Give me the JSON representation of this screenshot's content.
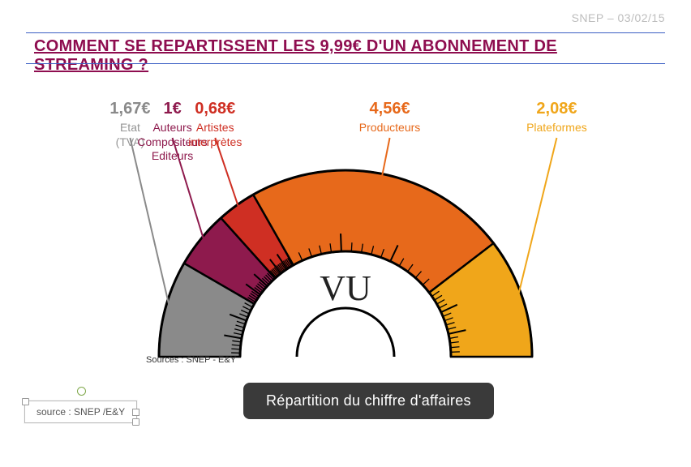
{
  "meta": {
    "org": "SNEP",
    "date": "03/02/15",
    "header_text": "SNEP – 03/02/15"
  },
  "title": "COMMENT SE REPARTISSENT LES 9,99€ D'UN ABONNEMENT DE STREAMING ?",
  "chart": {
    "type": "semi-donut-gauge",
    "units": "€",
    "total": 9.99,
    "center_label": "VU",
    "subtitle": "Répartition du chiffre d'affaires",
    "source_inline": "Sources : SNEP - E&Y",
    "segments": [
      {
        "label_lines": [
          "Etat",
          "(TVA)"
        ],
        "value": 1.67,
        "value_display": "1,67€",
        "color": "#8a8a8a"
      },
      {
        "label_lines": [
          "Auteurs",
          "Compositeurs",
          "Editeurs"
        ],
        "value": 1.0,
        "value_display": "1€",
        "color": "#8e1a4d"
      },
      {
        "label_lines": [
          "Artistes",
          "interprètes"
        ],
        "value": 0.68,
        "value_display": "0,68€",
        "color": "#cf2f23"
      },
      {
        "label_lines": [
          "Producteurs"
        ],
        "value": 4.56,
        "value_display": "4,56€",
        "color": "#e7691b"
      },
      {
        "label_lines": [
          "Plateformes"
        ],
        "value": 2.08,
        "value_display": "2,08€",
        "color": "#f0a61a"
      }
    ],
    "stroke_color": "#000000",
    "tick_color": "#000000",
    "background_color": "#ffffff",
    "outer_radius": 230,
    "inner_radius": 130,
    "major_ticks_per_seg": 3,
    "minor_ticks_per_major": 4,
    "label_y_offset": -48,
    "title_fontsize": 20,
    "title_color": "#8e0d4f",
    "center_font_family": "serif",
    "center_fontsize": 44
  },
  "editbox_text": "source : SNEP /E&Y",
  "colors": {
    "rule": "#3b5fc4",
    "meta_text": "#bdbdbd",
    "pill_bg": "#3a3a3a",
    "pill_text": "#ffffff"
  }
}
